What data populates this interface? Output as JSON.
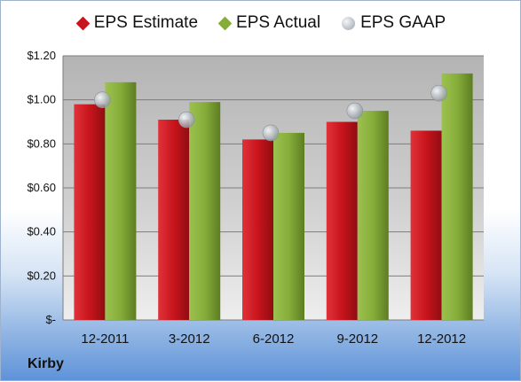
{
  "company": "Kirby",
  "legend": [
    {
      "name": "EPS Estimate",
      "color": "#c8141c",
      "shape": "diamond"
    },
    {
      "name": "EPS Actual",
      "color": "#86ad3a",
      "shape": "diamond"
    },
    {
      "name": "EPS GAAP",
      "color": "#b9bec6",
      "shape": "circle"
    }
  ],
  "chart_data": {
    "type": "bar",
    "categories": [
      "12-2011",
      "3-2012",
      "6-2012",
      "9-2012",
      "12-2012"
    ],
    "series": [
      {
        "name": "EPS Estimate",
        "type": "bar",
        "color": "#c8141c",
        "values": [
          0.98,
          0.91,
          0.82,
          0.9,
          0.86
        ]
      },
      {
        "name": "EPS Actual",
        "type": "bar",
        "color": "#86ad3a",
        "values": [
          1.08,
          0.99,
          0.85,
          0.95,
          1.12
        ]
      },
      {
        "name": "EPS GAAP",
        "type": "scatter",
        "color": "#b9bec6",
        "values": [
          1.0,
          0.91,
          0.85,
          0.95,
          1.03
        ]
      }
    ],
    "ylim": [
      0,
      1.2
    ],
    "yticks": [
      0,
      0.2,
      0.4,
      0.6,
      0.8,
      1.0,
      1.2
    ],
    "ytick_labels": [
      "$-",
      "$0.20",
      "$0.40",
      "$0.60",
      "$0.80",
      "$1.00",
      "$1.20"
    ],
    "grid": true,
    "legend_position": "top"
  }
}
